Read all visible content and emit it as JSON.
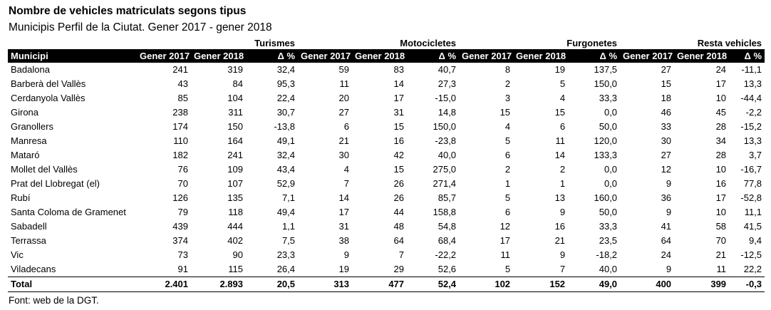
{
  "title": "Nombre de vehicles matriculats segons tipus",
  "subtitle": "Municipis Perfil de la Ciutat. Gener 2017 - gener 2018",
  "footer": "Font: web de la DGT.",
  "table": {
    "groups": [
      "Turismes",
      "Motocicletes",
      "Furgonetes",
      "Resta vehicles"
    ],
    "municipi_header": "Municipi",
    "sub_headers": [
      "Gener 2017",
      "Gener 2018",
      "Δ %"
    ],
    "rows": [
      {
        "name": "Badalona",
        "values": [
          "241",
          "319",
          "32,4",
          "59",
          "83",
          "40,7",
          "8",
          "19",
          "137,5",
          "27",
          "24",
          "-11,1"
        ]
      },
      {
        "name": "Barberà del Vallès",
        "values": [
          "43",
          "84",
          "95,3",
          "11",
          "14",
          "27,3",
          "2",
          "5",
          "150,0",
          "15",
          "17",
          "13,3"
        ]
      },
      {
        "name": "Cerdanyola Vallès",
        "values": [
          "85",
          "104",
          "22,4",
          "20",
          "17",
          "-15,0",
          "3",
          "4",
          "33,3",
          "18",
          "10",
          "-44,4"
        ]
      },
      {
        "name": "Girona",
        "values": [
          "238",
          "311",
          "30,7",
          "27",
          "31",
          "14,8",
          "15",
          "15",
          "0,0",
          "46",
          "45",
          "-2,2"
        ]
      },
      {
        "name": "Granollers",
        "values": [
          "174",
          "150",
          "-13,8",
          "6",
          "15",
          "150,0",
          "4",
          "6",
          "50,0",
          "33",
          "28",
          "-15,2"
        ]
      },
      {
        "name": "Manresa",
        "values": [
          "110",
          "164",
          "49,1",
          "21",
          "16",
          "-23,8",
          "5",
          "11",
          "120,0",
          "30",
          "34",
          "13,3"
        ]
      },
      {
        "name": "Mataró",
        "values": [
          "182",
          "241",
          "32,4",
          "30",
          "42",
          "40,0",
          "6",
          "14",
          "133,3",
          "27",
          "28",
          "3,7"
        ]
      },
      {
        "name": "Mollet del Vallès",
        "values": [
          "76",
          "109",
          "43,4",
          "4",
          "15",
          "275,0",
          "2",
          "2",
          "0,0",
          "12",
          "10",
          "-16,7"
        ]
      },
      {
        "name": "Prat del Llobregat (el)",
        "values": [
          "70",
          "107",
          "52,9",
          "7",
          "26",
          "271,4",
          "1",
          "1",
          "0,0",
          "9",
          "16",
          "77,8"
        ]
      },
      {
        "name": "Rubí",
        "values": [
          "126",
          "135",
          "7,1",
          "14",
          "26",
          "85,7",
          "5",
          "13",
          "160,0",
          "36",
          "17",
          "-52,8"
        ]
      },
      {
        "name": "Santa Coloma de Gramenet",
        "values": [
          "79",
          "118",
          "49,4",
          "17",
          "44",
          "158,8",
          "6",
          "9",
          "50,0",
          "9",
          "10",
          "11,1"
        ]
      },
      {
        "name": "Sabadell",
        "values": [
          "439",
          "444",
          "1,1",
          "31",
          "48",
          "54,8",
          "12",
          "16",
          "33,3",
          "41",
          "58",
          "41,5"
        ]
      },
      {
        "name": "Terrassa",
        "values": [
          "374",
          "402",
          "7,5",
          "38",
          "64",
          "68,4",
          "17",
          "21",
          "23,5",
          "64",
          "70",
          "9,4"
        ]
      },
      {
        "name": "Vic",
        "values": [
          "73",
          "90",
          "23,3",
          "9",
          "7",
          "-22,2",
          "11",
          "9",
          "-18,2",
          "24",
          "21",
          "-12,5"
        ]
      },
      {
        "name": "Viladecans",
        "values": [
          "91",
          "115",
          "26,4",
          "19",
          "29",
          "52,6",
          "5",
          "7",
          "40,0",
          "9",
          "11",
          "22,2"
        ]
      }
    ],
    "total": {
      "name": "Total",
      "values": [
        "2.401",
        "2.893",
        "20,5",
        "313",
        "477",
        "52,4",
        "102",
        "152",
        "49,0",
        "400",
        "399",
        "-0,3"
      ]
    }
  }
}
